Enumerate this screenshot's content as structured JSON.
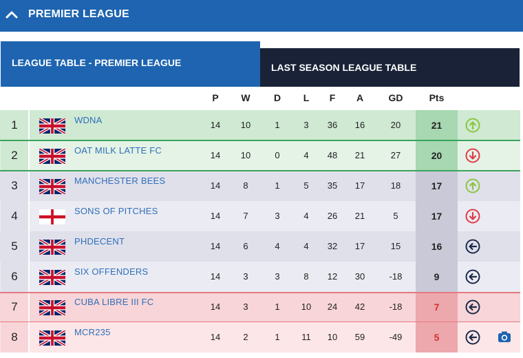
{
  "header": {
    "title": "PREMIER LEAGUE",
    "chevron_icon": "chevron-up-icon"
  },
  "tabs": [
    {
      "label": "LEAGUE TABLE - PREMIER LEAGUE",
      "active": true
    },
    {
      "label": "LAST SEASON LEAGUE TABLE",
      "active": false
    }
  ],
  "columns": [
    "P",
    "W",
    "D",
    "L",
    "F",
    "A",
    "GD",
    "Pts"
  ],
  "colors": {
    "brand_blue": "#1e64b0",
    "dark_tab": "#192236",
    "promotion_row": "#cfe9d3",
    "promotion_pts": "#a7d8b1",
    "neutral_row": "#e0e0eb",
    "neutral_pts": "#c9c9d8",
    "relegation_row": "#f8d5d8",
    "relegation_pts": "#eda8ad",
    "up_arrow": "#8cc63f",
    "down_arrow": "#e03a46",
    "team_link": "#2f6fb8"
  },
  "rows": [
    {
      "pos": "1",
      "flag": "uk-flag",
      "team": "WDNA",
      "p": "14",
      "w": "10",
      "d": "1",
      "l": "3",
      "f": "36",
      "a": "16",
      "gd": "20",
      "pts": "21",
      "zone": "promotion",
      "movement": "up-arrow-icon"
    },
    {
      "pos": "2",
      "flag": "uk-flag",
      "team": "OAT MILK LATTE FC",
      "p": "14",
      "w": "10",
      "d": "0",
      "l": "4",
      "f": "48",
      "a": "21",
      "gd": "27",
      "pts": "20",
      "zone": "promotion",
      "movement": "down-arrow-icon"
    },
    {
      "pos": "3",
      "flag": "uk-flag",
      "team": "MANCHESTER BEES",
      "p": "14",
      "w": "8",
      "d": "1",
      "l": "5",
      "f": "35",
      "a": "17",
      "gd": "18",
      "pts": "17",
      "zone": "neutral",
      "movement": "up-arrow-icon"
    },
    {
      "pos": "4",
      "flag": "england-flag",
      "team": "SONS OF PITCHES",
      "p": "14",
      "w": "7",
      "d": "3",
      "l": "4",
      "f": "26",
      "a": "21",
      "gd": "5",
      "pts": "17",
      "zone": "neutral",
      "movement": "down-arrow-icon"
    },
    {
      "pos": "5",
      "flag": "uk-flag",
      "team": "PHDECENT",
      "p": "14",
      "w": "6",
      "d": "4",
      "l": "4",
      "f": "32",
      "a": "17",
      "gd": "15",
      "pts": "16",
      "zone": "neutral",
      "movement": "left-arrow-icon"
    },
    {
      "pos": "6",
      "flag": "uk-flag",
      "team": "SIX OFFENDERS",
      "p": "14",
      "w": "3",
      "d": "3",
      "l": "8",
      "f": "12",
      "a": "30",
      "gd": "-18",
      "pts": "9",
      "zone": "neutral",
      "movement": "left-arrow-icon"
    },
    {
      "pos": "7",
      "flag": "uk-flag",
      "team": "CUBA LIBRE III FC",
      "p": "14",
      "w": "3",
      "d": "1",
      "l": "10",
      "f": "24",
      "a": "42",
      "gd": "-18",
      "pts": "7",
      "zone": "relegation",
      "movement": "left-arrow-icon"
    },
    {
      "pos": "8",
      "flag": "uk-flag",
      "team": "MCR235",
      "p": "14",
      "w": "2",
      "d": "1",
      "l": "11",
      "f": "10",
      "a": "59",
      "gd": "-49",
      "pts": "5",
      "zone": "relegation",
      "movement": "left-arrow-icon",
      "extra_icon": "camera-icon"
    }
  ]
}
